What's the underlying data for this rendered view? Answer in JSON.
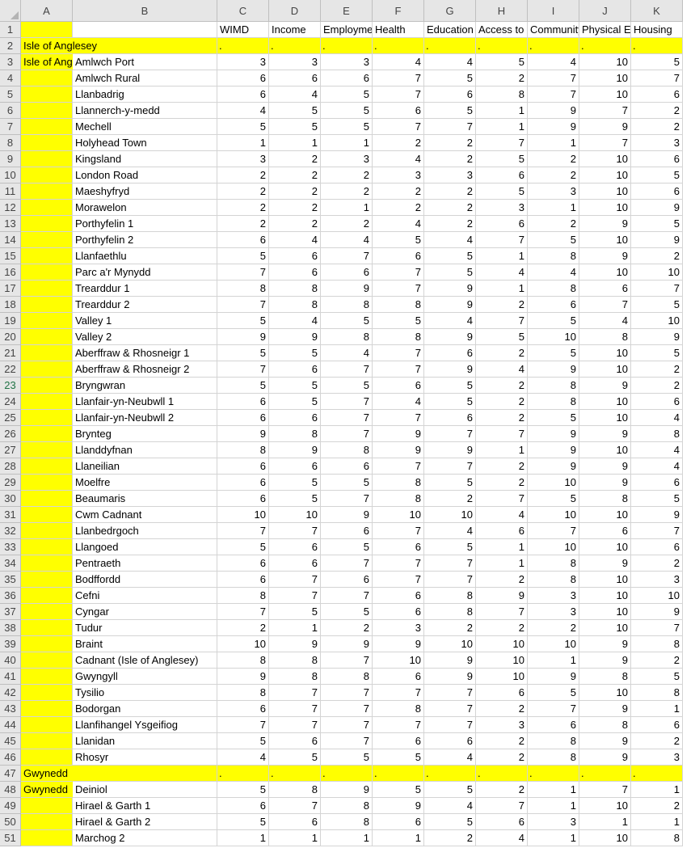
{
  "columns": [
    "A",
    "B",
    "C",
    "D",
    "E",
    "F",
    "G",
    "H",
    "I",
    "J",
    "K"
  ],
  "header": [
    "",
    "",
    "WIMD",
    "Income",
    "Employment",
    "Health",
    "Education",
    "Access to",
    "Community",
    "Physical E",
    "Housing"
  ],
  "group_rows": [
    {
      "row": 2,
      "label": "Isle of Anglesey"
    },
    {
      "row": 47,
      "label": "Gwynedd"
    }
  ],
  "dot_marker": ".",
  "rows": [
    {
      "n": 3,
      "a": "Isle of Anglesey",
      "b": "Amlwch Port",
      "v": [
        3,
        3,
        3,
        4,
        4,
        5,
        4,
        10,
        5
      ]
    },
    {
      "n": 4,
      "a": "",
      "b": "Amlwch Rural",
      "v": [
        6,
        6,
        6,
        7,
        5,
        2,
        7,
        10,
        7
      ]
    },
    {
      "n": 5,
      "a": "",
      "b": "Llanbadrig",
      "v": [
        6,
        4,
        5,
        7,
        6,
        8,
        7,
        10,
        6
      ]
    },
    {
      "n": 6,
      "a": "",
      "b": "Llannerch-y-medd",
      "v": [
        4,
        5,
        5,
        6,
        5,
        1,
        9,
        7,
        2
      ]
    },
    {
      "n": 7,
      "a": "",
      "b": "Mechell",
      "v": [
        5,
        5,
        5,
        7,
        7,
        1,
        9,
        9,
        2
      ]
    },
    {
      "n": 8,
      "a": "",
      "b": "Holyhead Town",
      "v": [
        1,
        1,
        1,
        2,
        2,
        7,
        1,
        7,
        3
      ]
    },
    {
      "n": 9,
      "a": "",
      "b": "Kingsland",
      "v": [
        3,
        2,
        3,
        4,
        2,
        5,
        2,
        10,
        6
      ]
    },
    {
      "n": 10,
      "a": "",
      "b": "London Road",
      "v": [
        2,
        2,
        2,
        3,
        3,
        6,
        2,
        10,
        5
      ]
    },
    {
      "n": 11,
      "a": "",
      "b": "Maeshyfryd",
      "v": [
        2,
        2,
        2,
        2,
        2,
        5,
        3,
        10,
        6
      ]
    },
    {
      "n": 12,
      "a": "",
      "b": "Morawelon",
      "v": [
        2,
        2,
        1,
        2,
        2,
        3,
        1,
        10,
        9
      ]
    },
    {
      "n": 13,
      "a": "",
      "b": "Porthyfelin 1",
      "v": [
        2,
        2,
        2,
        4,
        2,
        6,
        2,
        9,
        5
      ]
    },
    {
      "n": 14,
      "a": "",
      "b": "Porthyfelin 2",
      "v": [
        6,
        4,
        4,
        5,
        4,
        7,
        5,
        10,
        9
      ]
    },
    {
      "n": 15,
      "a": "",
      "b": "Llanfaethlu",
      "v": [
        5,
        6,
        7,
        6,
        5,
        1,
        8,
        9,
        2
      ]
    },
    {
      "n": 16,
      "a": "",
      "b": "Parc a'r Mynydd",
      "v": [
        7,
        6,
        6,
        7,
        5,
        4,
        4,
        10,
        10
      ]
    },
    {
      "n": 17,
      "a": "",
      "b": "Trearddur 1",
      "v": [
        8,
        8,
        9,
        7,
        9,
        1,
        8,
        6,
        7
      ]
    },
    {
      "n": 18,
      "a": "",
      "b": "Trearddur 2",
      "v": [
        7,
        8,
        8,
        8,
        9,
        2,
        6,
        7,
        5
      ]
    },
    {
      "n": 19,
      "a": "",
      "b": "Valley 1",
      "v": [
        5,
        4,
        5,
        5,
        4,
        7,
        5,
        4,
        10
      ]
    },
    {
      "n": 20,
      "a": "",
      "b": "Valley 2",
      "v": [
        9,
        9,
        8,
        8,
        9,
        5,
        10,
        8,
        9
      ]
    },
    {
      "n": 21,
      "a": "",
      "b": "Aberffraw & Rhosneigr 1",
      "v": [
        5,
        5,
        4,
        7,
        6,
        2,
        5,
        10,
        5
      ]
    },
    {
      "n": 22,
      "a": "",
      "b": "Aberffraw & Rhosneigr 2",
      "v": [
        7,
        6,
        7,
        7,
        9,
        4,
        9,
        10,
        2
      ]
    },
    {
      "n": 23,
      "a": "",
      "b": "Bryngwran",
      "v": [
        5,
        5,
        5,
        6,
        5,
        2,
        8,
        9,
        2
      ]
    },
    {
      "n": 24,
      "a": "",
      "b": "Llanfair-yn-Neubwll 1",
      "v": [
        6,
        5,
        7,
        4,
        5,
        2,
        8,
        10,
        6
      ]
    },
    {
      "n": 25,
      "a": "",
      "b": "Llanfair-yn-Neubwll 2",
      "v": [
        6,
        6,
        7,
        7,
        6,
        2,
        5,
        10,
        4
      ]
    },
    {
      "n": 26,
      "a": "",
      "b": "Brynteg",
      "v": [
        9,
        8,
        7,
        9,
        7,
        7,
        9,
        9,
        8
      ]
    },
    {
      "n": 27,
      "a": "",
      "b": "Llanddyfnan",
      "v": [
        8,
        9,
        8,
        9,
        9,
        1,
        9,
        10,
        4
      ]
    },
    {
      "n": 28,
      "a": "",
      "b": "Llaneilian",
      "v": [
        6,
        6,
        6,
        7,
        7,
        2,
        9,
        9,
        4
      ]
    },
    {
      "n": 29,
      "a": "",
      "b": "Moelfre",
      "v": [
        6,
        5,
        5,
        8,
        5,
        2,
        10,
        9,
        6
      ]
    },
    {
      "n": 30,
      "a": "",
      "b": "Beaumaris",
      "v": [
        6,
        5,
        7,
        8,
        2,
        7,
        5,
        8,
        5
      ]
    },
    {
      "n": 31,
      "a": "",
      "b": "Cwm Cadnant",
      "v": [
        10,
        10,
        9,
        10,
        10,
        4,
        10,
        10,
        9
      ]
    },
    {
      "n": 32,
      "a": "",
      "b": "Llanbedrgoch",
      "v": [
        7,
        7,
        6,
        7,
        4,
        6,
        7,
        6,
        7
      ]
    },
    {
      "n": 33,
      "a": "",
      "b": "Llangoed",
      "v": [
        5,
        6,
        5,
        6,
        5,
        1,
        10,
        10,
        6
      ]
    },
    {
      "n": 34,
      "a": "",
      "b": "Pentraeth",
      "v": [
        6,
        6,
        7,
        7,
        7,
        1,
        8,
        9,
        2
      ]
    },
    {
      "n": 35,
      "a": "",
      "b": "Bodffordd",
      "v": [
        6,
        7,
        6,
        7,
        7,
        2,
        8,
        10,
        3
      ]
    },
    {
      "n": 36,
      "a": "",
      "b": "Cefni",
      "v": [
        8,
        7,
        7,
        6,
        8,
        9,
        3,
        10,
        10
      ]
    },
    {
      "n": 37,
      "a": "",
      "b": "Cyngar",
      "v": [
        7,
        5,
        5,
        6,
        8,
        7,
        3,
        10,
        9
      ]
    },
    {
      "n": 38,
      "a": "",
      "b": "Tudur",
      "v": [
        2,
        1,
        2,
        3,
        2,
        2,
        2,
        10,
        7
      ]
    },
    {
      "n": 39,
      "a": "",
      "b": "Braint",
      "v": [
        10,
        9,
        9,
        9,
        10,
        10,
        10,
        9,
        8
      ]
    },
    {
      "n": 40,
      "a": "",
      "b": "Cadnant (Isle of Anglesey)",
      "v": [
        8,
        8,
        7,
        10,
        9,
        10,
        1,
        9,
        2
      ]
    },
    {
      "n": 41,
      "a": "",
      "b": "Gwyngyll",
      "v": [
        9,
        8,
        8,
        6,
        9,
        10,
        9,
        8,
        5
      ]
    },
    {
      "n": 42,
      "a": "",
      "b": "Tysilio",
      "v": [
        8,
        7,
        7,
        7,
        7,
        6,
        5,
        10,
        8
      ]
    },
    {
      "n": 43,
      "a": "",
      "b": "Bodorgan",
      "v": [
        6,
        7,
        7,
        8,
        7,
        2,
        7,
        9,
        1
      ]
    },
    {
      "n": 44,
      "a": "",
      "b": "Llanfihangel Ysgeifiog",
      "v": [
        7,
        7,
        7,
        7,
        7,
        3,
        6,
        8,
        6
      ]
    },
    {
      "n": 45,
      "a": "",
      "b": "Llanidan",
      "v": [
        5,
        6,
        7,
        6,
        6,
        2,
        8,
        9,
        2
      ]
    },
    {
      "n": 46,
      "a": "",
      "b": "Rhosyr",
      "v": [
        4,
        5,
        5,
        5,
        4,
        2,
        8,
        9,
        3
      ]
    },
    {
      "n": 48,
      "a": "Gwynedd",
      "b": "Deiniol",
      "v": [
        5,
        8,
        9,
        5,
        5,
        2,
        1,
        7,
        1
      ]
    },
    {
      "n": 49,
      "a": "",
      "b": "Hirael & Garth 1",
      "v": [
        6,
        7,
        8,
        9,
        4,
        7,
        1,
        10,
        2
      ]
    },
    {
      "n": 50,
      "a": "",
      "b": "Hirael & Garth 2",
      "v": [
        5,
        6,
        8,
        6,
        5,
        6,
        3,
        1,
        1
      ]
    },
    {
      "n": 51,
      "a": "",
      "b": "Marchog 2",
      "v": [
        1,
        1,
        1,
        1,
        2,
        4,
        1,
        10,
        8
      ]
    }
  ],
  "selected_row": 23,
  "colors": {
    "highlight": "#ffff00",
    "header_bg": "#e6e6e6",
    "gridline": "#d4d4d4",
    "selected_header_text": "#217346"
  }
}
